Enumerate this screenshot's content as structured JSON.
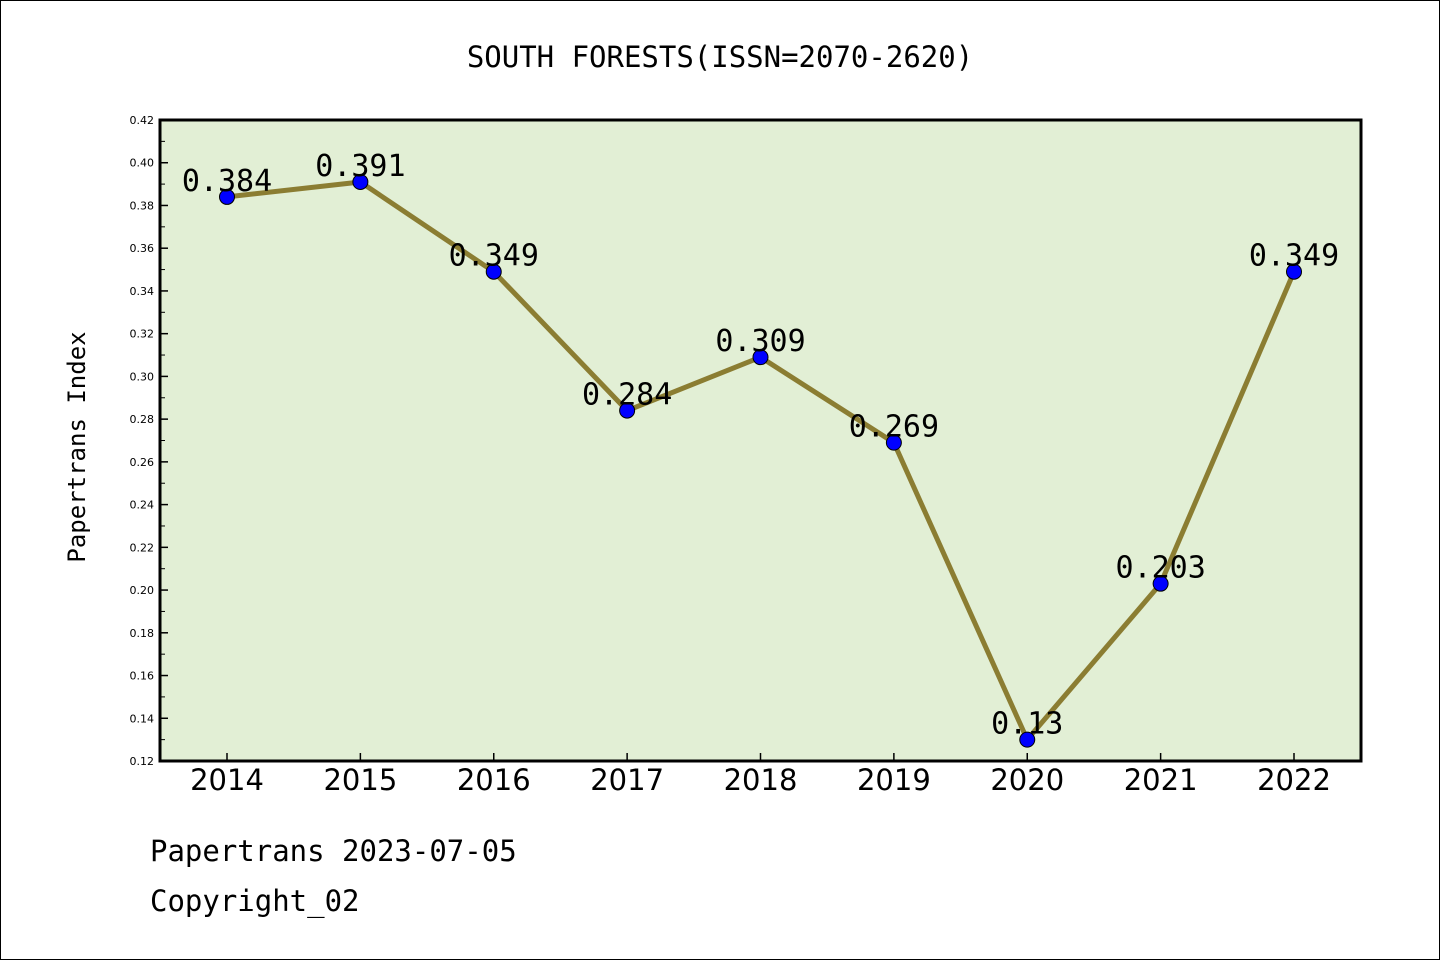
{
  "chart_data": {
    "type": "line",
    "title": "SOUTH FORESTS(ISSN=2070-2620)",
    "xlabel": "",
    "ylabel": "Papertrans Index",
    "categories": [
      "2014",
      "2015",
      "2016",
      "2017",
      "2018",
      "2019",
      "2020",
      "2021",
      "2022"
    ],
    "values": [
      0.384,
      0.391,
      0.349,
      0.284,
      0.309,
      0.269,
      0.13,
      0.203,
      0.349
    ],
    "value_labels": [
      "0.384",
      "0.391",
      "0.349",
      "0.284",
      "0.309",
      "0.269",
      "0.13",
      "0.203",
      "0.349"
    ],
    "ylim": [
      0.12,
      0.42
    ],
    "yticks": [
      "0.12",
      "0.14",
      "0.16",
      "0.18",
      "0.20",
      "0.22",
      "0.24",
      "0.26",
      "0.28",
      "0.30",
      "0.32",
      "0.34",
      "0.36",
      "0.38",
      "0.40",
      "0.42"
    ],
    "grid": false,
    "colors": {
      "plot_background": "#e2efd5",
      "line": "#8b7d32",
      "marker": "#0000ff"
    }
  },
  "footer": {
    "line1": "Papertrans 2023-07-05",
    "line2": "Copyright_02"
  }
}
